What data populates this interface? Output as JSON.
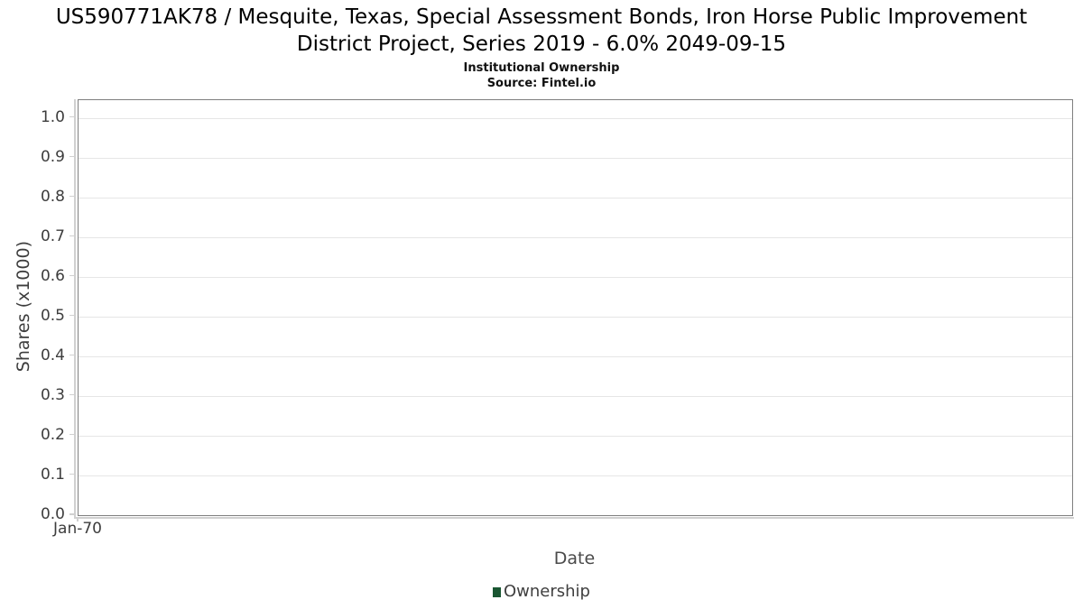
{
  "chart_data": {
    "type": "line",
    "title": "US590771AK78 / Mesquite, Texas, Special Assessment Bonds, Iron Horse Public Improvement District Project, Series 2019 - 6.0% 2049-09-15",
    "subtitle": "Institutional Ownership",
    "source": "Source: Fintel.io",
    "xlabel": "Date",
    "ylabel": "Shares (x1000)",
    "x_tick_labels": [
      "Jan-70"
    ],
    "y_tick_labels": [
      "0.0",
      "0.1",
      "0.2",
      "0.3",
      "0.4",
      "0.5",
      "0.6",
      "0.7",
      "0.8",
      "0.9",
      "1.0"
    ],
    "ylim": [
      0,
      1.045
    ],
    "grid": true,
    "legend": {
      "position": "bottom",
      "items": [
        {
          "label": "Ownership",
          "color": "#1a5632"
        }
      ]
    },
    "series": [
      {
        "name": "Ownership",
        "color": "#1a5632",
        "points": []
      }
    ],
    "colors": {
      "gridline": "#e6e6e6",
      "plot_border": "#7f7f7f",
      "axis_line": "#d0d0d0",
      "tick_text": "#3d3d3d"
    }
  }
}
